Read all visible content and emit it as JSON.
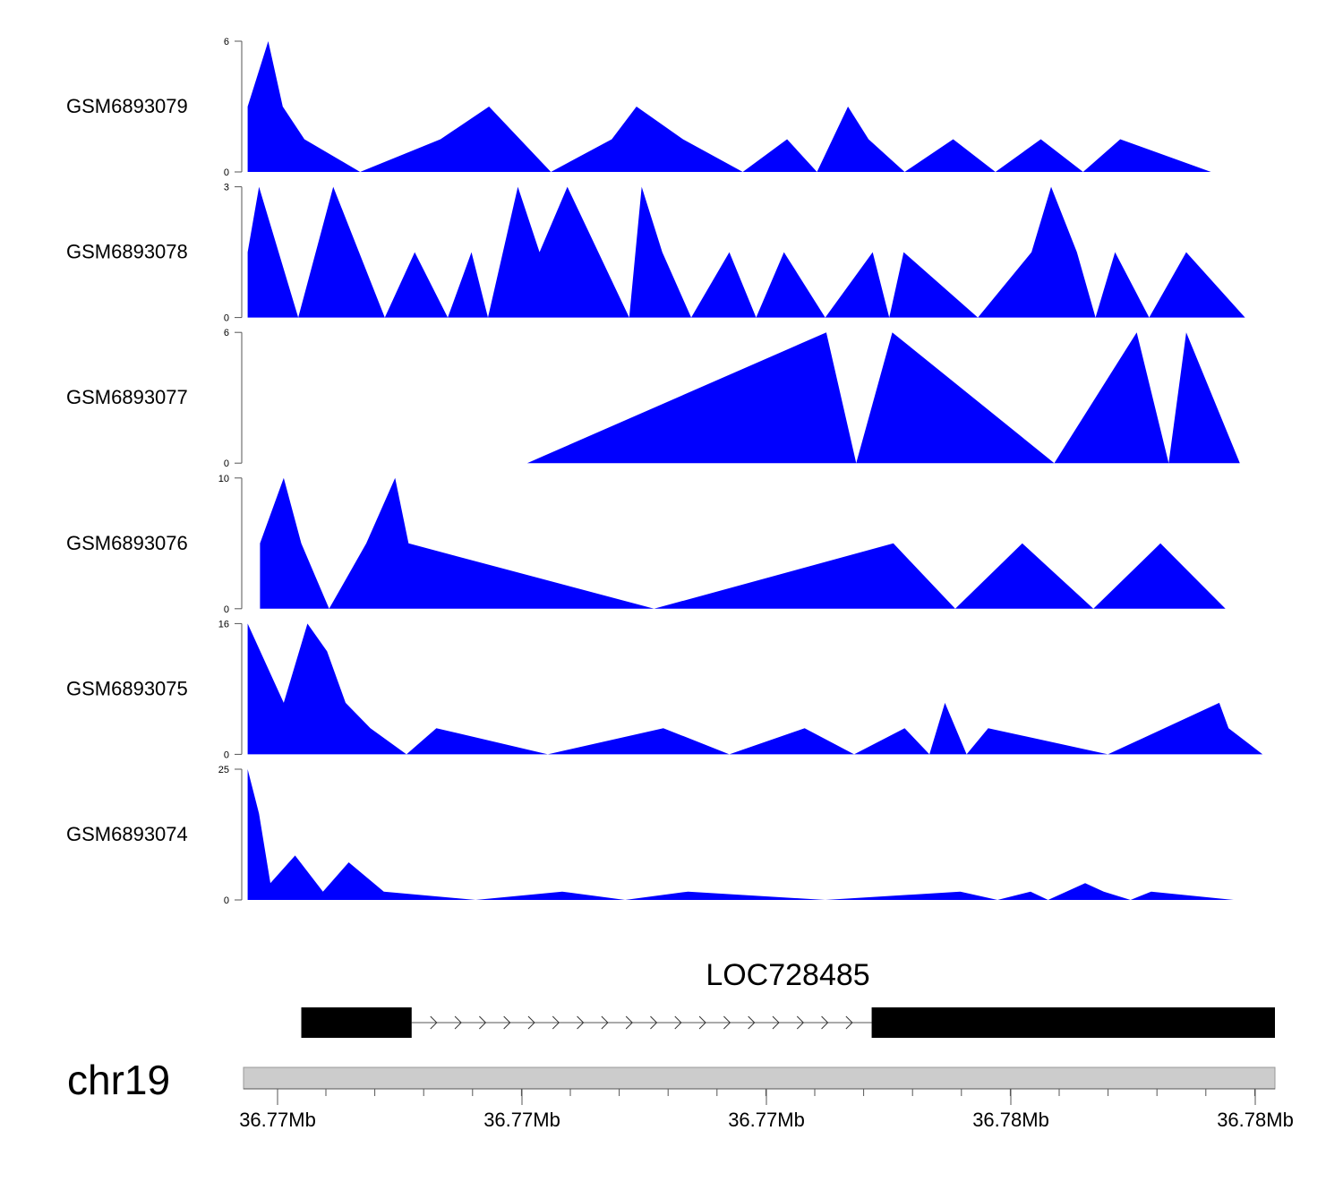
{
  "chart_data": {
    "type": "area",
    "x_unit": "position index along locus (0 = left edge, 100 = right edge)",
    "tracks": [
      {
        "name": "GSM6893079",
        "ymax_label": "6",
        "ymin_label": "0",
        "ylim": [
          0,
          6
        ],
        "color": "#0000ff",
        "points": [
          [
            0.4,
            3
          ],
          [
            2.4,
            6
          ],
          [
            3.8,
            3
          ],
          [
            5.9,
            1.5
          ],
          [
            11.3,
            0
          ],
          [
            19.1,
            1.5
          ],
          [
            23.8,
            3
          ],
          [
            29.8,
            0
          ],
          [
            35.7,
            1.5
          ],
          [
            38.1,
            3
          ],
          [
            42.6,
            1.5
          ],
          [
            48.4,
            0
          ],
          [
            52.7,
            1.5
          ],
          [
            55.6,
            0
          ],
          [
            58.6,
            3
          ],
          [
            60.6,
            1.5
          ],
          [
            64.1,
            0
          ],
          [
            68.8,
            1.5
          ],
          [
            72.9,
            0
          ],
          [
            77.3,
            1.5
          ],
          [
            81.4,
            0
          ],
          [
            85.0,
            1.5
          ],
          [
            93.8,
            0
          ]
        ]
      },
      {
        "name": "GSM6893078",
        "ymax_label": "3",
        "ymin_label": "0",
        "ylim": [
          0,
          3
        ],
        "color": "#0000ff",
        "points": [
          [
            0.4,
            1.5
          ],
          [
            1.5,
            3
          ],
          [
            5.3,
            0
          ],
          [
            8.7,
            3
          ],
          [
            11.2,
            1.5
          ],
          [
            13.7,
            0
          ],
          [
            16.6,
            1.5
          ],
          [
            19.8,
            0
          ],
          [
            22.1,
            1.5
          ],
          [
            23.7,
            0
          ],
          [
            26.6,
            3
          ],
          [
            28.7,
            1.5
          ],
          [
            31.4,
            3
          ],
          [
            37.4,
            0
          ],
          [
            38.6,
            3
          ],
          [
            40.6,
            1.5
          ],
          [
            43.4,
            0
          ],
          [
            47.1,
            1.5
          ],
          [
            49.7,
            0
          ],
          [
            52.4,
            1.5
          ],
          [
            56.4,
            0
          ],
          [
            61.0,
            1.5
          ],
          [
            62.6,
            0
          ],
          [
            64.0,
            1.5
          ],
          [
            71.2,
            0
          ],
          [
            76.4,
            1.5
          ],
          [
            78.3,
            3
          ],
          [
            80.8,
            1.5
          ],
          [
            82.6,
            0
          ],
          [
            84.5,
            1.5
          ],
          [
            87.8,
            0
          ],
          [
            91.4,
            1.5
          ],
          [
            97.1,
            0
          ]
        ]
      },
      {
        "name": "GSM6893077",
        "ymax_label": "6",
        "ymin_label": "0",
        "ylim": [
          0,
          6
        ],
        "color": "#0000ff",
        "points": [
          [
            27.5,
            0
          ],
          [
            56.5,
            6
          ],
          [
            59.4,
            0
          ],
          [
            62.9,
            6
          ],
          [
            78.6,
            0
          ],
          [
            86.6,
            6
          ],
          [
            89.7,
            0
          ],
          [
            91.4,
            6
          ],
          [
            96.6,
            0
          ]
        ]
      },
      {
        "name": "GSM6893076",
        "ymax_label": "10",
        "ymin_label": "0",
        "ylim": [
          0,
          10
        ],
        "color": "#0000ff",
        "points": [
          [
            1.6,
            5
          ],
          [
            3.9,
            10
          ],
          [
            5.6,
            5
          ],
          [
            8.3,
            0
          ],
          [
            11.9,
            5
          ],
          [
            14.7,
            10
          ],
          [
            16.0,
            5
          ],
          [
            39.8,
            0
          ],
          [
            63.0,
            5
          ],
          [
            69.0,
            0
          ],
          [
            75.5,
            5
          ],
          [
            82.4,
            0
          ],
          [
            88.9,
            5
          ],
          [
            95.2,
            0
          ]
        ]
      },
      {
        "name": "GSM6893075",
        "ymax_label": "16",
        "ymin_label": "0",
        "ylim": [
          0,
          16
        ],
        "color": "#0000ff",
        "points": [
          [
            0.4,
            16
          ],
          [
            3.9,
            6.3
          ],
          [
            6.2,
            16
          ],
          [
            8.1,
            12.6
          ],
          [
            9.9,
            6.3
          ],
          [
            12.3,
            3.2
          ],
          [
            15.8,
            0
          ],
          [
            18.7,
            3.2
          ],
          [
            29.5,
            0
          ],
          [
            40.7,
            3.2
          ],
          [
            47.1,
            0
          ],
          [
            54.4,
            3.2
          ],
          [
            59.2,
            0
          ],
          [
            64.1,
            3.2
          ],
          [
            66.5,
            0
          ],
          [
            68.0,
            6.3
          ],
          [
            70.1,
            0
          ],
          [
            72.2,
            3.2
          ],
          [
            83.8,
            0
          ],
          [
            94.6,
            6.3
          ],
          [
            95.5,
            3.2
          ],
          [
            98.8,
            0
          ]
        ]
      },
      {
        "name": "GSM6893074",
        "ymax_label": "25",
        "ymin_label": "0",
        "ylim": [
          0,
          25
        ],
        "color": "#0000ff",
        "points": [
          [
            0.4,
            25
          ],
          [
            1.5,
            16.5
          ],
          [
            2.6,
            3.2
          ],
          [
            5.0,
            8.5
          ],
          [
            7.7,
            1.6
          ],
          [
            10.2,
            7.2
          ],
          [
            13.6,
            1.6
          ],
          [
            22.5,
            0
          ],
          [
            30.9,
            1.6
          ],
          [
            37.0,
            0
          ],
          [
            43.1,
            1.6
          ],
          [
            56.4,
            0
          ],
          [
            69.5,
            1.6
          ],
          [
            73.1,
            0
          ],
          [
            76.3,
            1.6
          ],
          [
            78.0,
            0
          ],
          [
            81.6,
            3.2
          ],
          [
            83.4,
            1.6
          ],
          [
            86.0,
            0
          ],
          [
            88.0,
            1.6
          ],
          [
            96.0,
            0
          ]
        ]
      }
    ],
    "gene": {
      "name": "LOC728485",
      "exons": [
        [
          5.6,
          16.3
        ],
        [
          60.9,
          100
        ]
      ],
      "intron": [
        16.3,
        60.9
      ]
    },
    "chromosome": "chr19",
    "axis_ticks": [
      "36.77Mb",
      "36.77Mb",
      "36.77Mb",
      "36.78Mb",
      "36.78Mb"
    ]
  }
}
